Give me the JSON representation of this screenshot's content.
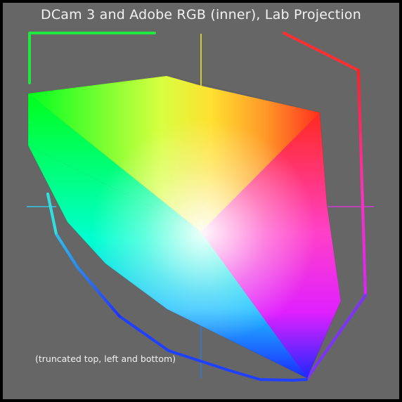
{
  "title": "DCam 3 and Adobe RGB (inner), Lab Projection",
  "note": "(truncated top, left and bottom)",
  "colors": {
    "background": "#666666",
    "frame": "#000000",
    "text": "#f2f2f2"
  },
  "gamuts": [
    {
      "name": "DCam 3",
      "style": "outline"
    },
    {
      "name": "Adobe RGB",
      "style": "filled",
      "position": "inner"
    }
  ],
  "axis_colors": {
    "yellow": "#e8e820",
    "magenta": "#d43bd4",
    "cyan": "#30c8e0",
    "blue": "#2a6ad8"
  }
}
